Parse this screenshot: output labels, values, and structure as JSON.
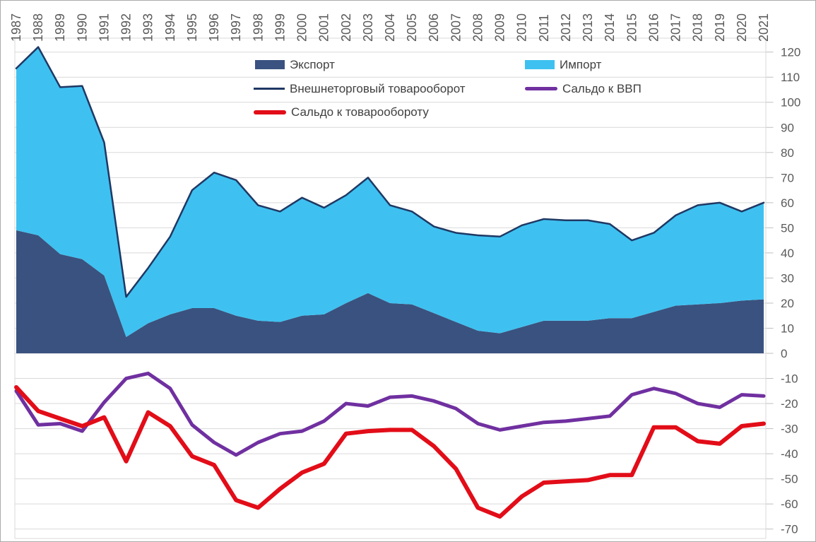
{
  "axis": {
    "yticks": [
      120,
      110,
      100,
      90,
      80,
      70,
      60,
      50,
      40,
      30,
      20,
      10,
      0,
      -10,
      -20,
      -30,
      -40,
      -50,
      -60,
      -70
    ],
    "label_color": "#595959",
    "grid_color": "#d9d9d9",
    "tick_color": "#bfbfbf",
    "frame_color": "#d9d9d9"
  },
  "chart_data": {
    "type": "area",
    "subtype": "stacked-area-with-lines",
    "x": [
      "1987",
      "1988",
      "1989",
      "1990",
      "1991",
      "1992",
      "1993",
      "1994",
      "1995",
      "1996",
      "1997",
      "1998",
      "1999",
      "2000",
      "2001",
      "2002",
      "2003",
      "2004",
      "2005",
      "2006",
      "2007",
      "2008",
      "2009",
      "2010",
      "2011",
      "2012",
      "2013",
      "2014",
      "2015",
      "2016",
      "2017",
      "2018",
      "2019",
      "2020",
      "2021"
    ],
    "ylim": [
      -72,
      126
    ],
    "grid": true,
    "legend_position": "top-overlay",
    "series": [
      {
        "name": "Экспорт",
        "type": "stacked-area",
        "color": "#3a527f",
        "values": [
          49,
          47,
          39.5,
          37.5,
          31,
          6.5,
          12,
          15.5,
          18,
          18,
          15,
          13,
          12.5,
          15,
          15.5,
          20,
          24,
          20,
          19.5,
          16,
          12.5,
          9,
          8,
          10.5,
          13,
          13,
          13,
          14,
          14,
          16.5,
          19,
          19.5,
          20,
          21,
          21.5
        ]
      },
      {
        "name": "Импорт",
        "type": "stacked-area",
        "color": "#3ec1f0",
        "values": [
          64.5,
          75,
          66.5,
          69,
          53,
          16,
          22,
          31,
          47,
          54,
          54,
          46,
          44,
          47,
          42.5,
          43,
          46,
          39,
          37,
          34.5,
          35.5,
          38,
          38.5,
          40.5,
          40.5,
          40,
          40,
          37.5,
          31,
          31.5,
          36,
          39.5,
          40,
          35.5,
          38.5
        ]
      },
      {
        "name": "Внешнеторговый товарооборот",
        "type": "line",
        "color": "#1f3864",
        "width": 2.5,
        "values": [
          113.5,
          122,
          106,
          106.5,
          84,
          22.5,
          34,
          46.5,
          65,
          72,
          69,
          59,
          56.5,
          62,
          58,
          63,
          70,
          59,
          56.5,
          50.5,
          48,
          47,
          46.5,
          51,
          53.5,
          53,
          53,
          51.5,
          45,
          48,
          55,
          59,
          60,
          56.5,
          60
        ]
      },
      {
        "name": "Сальдо к ВВП",
        "type": "line",
        "color": "#7030a0",
        "width": 5,
        "values": [
          -15,
          -28.5,
          -28,
          -31,
          -19.5,
          -10,
          -8,
          -14,
          -28.5,
          -35.5,
          -40.5,
          -35.5,
          -32,
          -31,
          -27,
          -20,
          -21,
          -17.5,
          -17,
          -19,
          -22,
          -28,
          -30.5,
          -29,
          -27.5,
          -27,
          -26,
          -25,
          -16.5,
          -14,
          -16,
          -20,
          -21.5,
          -16.5,
          -17
        ]
      },
      {
        "name": "Сальдо к товарообороту",
        "type": "line",
        "color": "#e20d18",
        "width": 6,
        "values": [
          -13.5,
          -23,
          -26,
          -29,
          -25.5,
          -43,
          -23.5,
          -29,
          -41,
          -44.5,
          -58.5,
          -61.5,
          -54,
          -47.5,
          -44,
          -32,
          -31,
          -30.5,
          -30.5,
          -37,
          -46,
          -61.5,
          -65,
          -57,
          -51.5,
          -51,
          -50.5,
          -48.5,
          -48.5,
          -29.5,
          -29.5,
          -35,
          -36,
          -29,
          -28
        ]
      }
    ]
  }
}
